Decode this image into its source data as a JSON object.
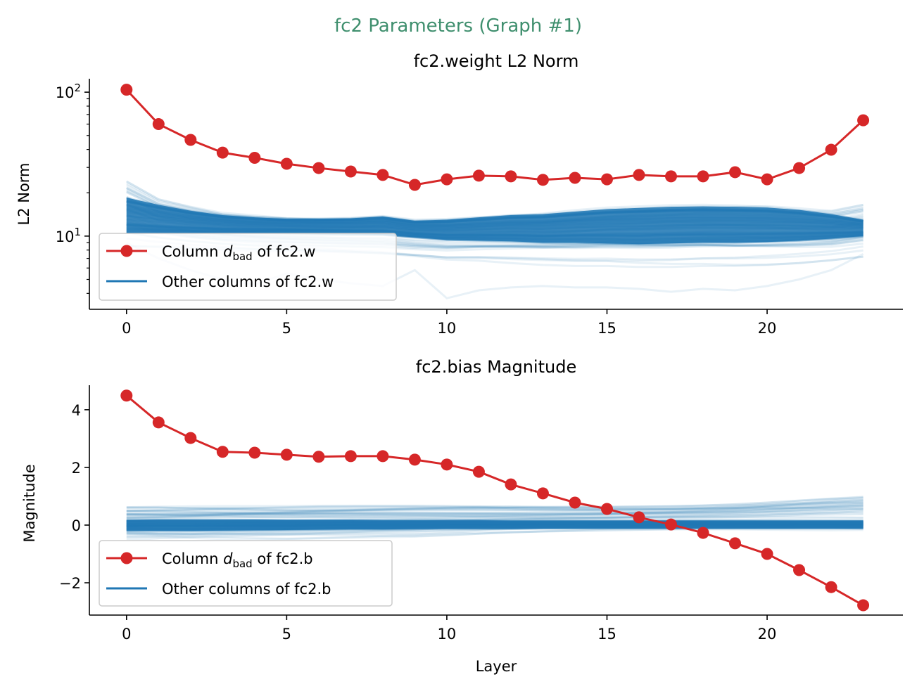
{
  "suptitle": "fc2 Parameters (Graph #1)",
  "colors": {
    "suptitle": "#3f8f6e",
    "bad": "#d62728",
    "other": "#1f77b4"
  },
  "chart_data": [
    {
      "type": "line",
      "title": "fc2.weight L2 Norm",
      "xlabel": "",
      "ylabel": "L2 Norm",
      "yscale": "log",
      "xlim": [
        -1.16,
        24.24
      ],
      "ylim": [
        3.1,
        124
      ],
      "xticks": [
        0,
        5,
        10,
        15,
        20
      ],
      "yticks": [
        {
          "value": 10,
          "base": "10",
          "exp": "1"
        },
        {
          "value": 100,
          "base": "10",
          "exp": "2"
        }
      ],
      "grid": false,
      "legend_position": "lower-left",
      "legend": [
        {
          "prefix": "Column ",
          "symbol": "d",
          "subscript": "bad",
          "suffix": " of fc2.w",
          "series": "bad"
        },
        {
          "prefix": "Other columns of fc2.w",
          "symbol": "",
          "subscript": "",
          "suffix": "",
          "series": "other"
        }
      ],
      "x": [
        0,
        1,
        2,
        3,
        4,
        5,
        6,
        7,
        8,
        9,
        10,
        11,
        12,
        13,
        14,
        15,
        16,
        17,
        18,
        19,
        20,
        21,
        22,
        23
      ],
      "bad_column": [
        104,
        60,
        46.6,
        38,
        35,
        31.8,
        29.7,
        28.1,
        26.6,
        22.7,
        24.8,
        26.3,
        26,
        24.6,
        25.4,
        24.8,
        26.6,
        26,
        26,
        27.8,
        24.8,
        29.7,
        39.8,
        63.8
      ],
      "other_columns": {
        "dense_upper": [
          18.5,
          16.5,
          15,
          14,
          13.5,
          13.2,
          13.2,
          13.3,
          13.7,
          12.8,
          13,
          13.5,
          14,
          14.2,
          14.8,
          15.4,
          15.7,
          16,
          16.1,
          16,
          15.8,
          15.2,
          14.2,
          13
        ],
        "dense_lower": [
          10.5,
          10.5,
          10.5,
          10.5,
          10.5,
          10.5,
          10.4,
          10.3,
          10.2,
          9.8,
          9.4,
          9.3,
          9.2,
          9,
          9,
          8.9,
          8.8,
          8.9,
          9,
          9,
          9.1,
          9.3,
          9.6,
          10
        ],
        "faint_upper": [
          24,
          18,
          16,
          14.5,
          14,
          13.6,
          13.5,
          13.6,
          14,
          13.2,
          13.4,
          13.8,
          14.3,
          14.6,
          15.2,
          15.8,
          16.1,
          16.4,
          16.5,
          16.4,
          16.2,
          15.6,
          15,
          16.5
        ],
        "faint_lower": [
          8.5,
          8.3,
          8,
          7.8,
          7.6,
          7.5,
          7.4,
          7.2,
          7,
          6.8,
          6.5,
          6.5,
          6.4,
          6.3,
          6.2,
          6.2,
          6.1,
          6.1,
          6.2,
          6.2,
          6.3,
          6.5,
          6.8,
          7.2
        ],
        "outlier": [
          9,
          7,
          5.8,
          5,
          4.6,
          5.5,
          5,
          4.7,
          4.5,
          5.8,
          3.7,
          4.2,
          4.4,
          4.5,
          4.4,
          4.4,
          4.3,
          4.1,
          4.3,
          4.2,
          4.5,
          5,
          5.8,
          7.5
        ]
      }
    },
    {
      "type": "line",
      "title": "fc2.bias Magnitude",
      "xlabel": "Layer",
      "ylabel": "Magnitude",
      "yscale": "linear",
      "xlim": [
        -1.16,
        24.24
      ],
      "ylim": [
        -3.12,
        4.85
      ],
      "xticks": [
        0,
        5,
        10,
        15,
        20
      ],
      "yticks": [
        {
          "value": -2,
          "label": "−2"
        },
        {
          "value": 0,
          "label": "0"
        },
        {
          "value": 2,
          "label": "2"
        },
        {
          "value": 4,
          "label": "4"
        }
      ],
      "grid": false,
      "legend_position": "lower-left",
      "legend": [
        {
          "prefix": "Column ",
          "symbol": "d",
          "subscript": "bad",
          "suffix": " of fc2.b",
          "series": "bad"
        },
        {
          "prefix": "Other columns of fc2.b",
          "symbol": "",
          "subscript": "",
          "suffix": "",
          "series": "other"
        }
      ],
      "x": [
        0,
        1,
        2,
        3,
        4,
        5,
        6,
        7,
        8,
        9,
        10,
        11,
        12,
        13,
        14,
        15,
        16,
        17,
        18,
        19,
        20,
        21,
        22,
        23
      ],
      "bad_column": [
        4.49,
        3.56,
        3.02,
        2.54,
        2.51,
        2.44,
        2.37,
        2.39,
        2.39,
        2.27,
        2.1,
        1.85,
        1.41,
        1.1,
        0.78,
        0.56,
        0.27,
        0.02,
        -0.27,
        -0.63,
        -1.0,
        -1.56,
        -2.15,
        -2.78
      ],
      "other_columns": {
        "dense_upper": [
          0.17,
          0.18,
          0.18,
          0.18,
          0.18,
          0.17,
          0.17,
          0.17,
          0.16,
          0.16,
          0.16,
          0.16,
          0.15,
          0.15,
          0.15,
          0.15,
          0.15,
          0.15,
          0.15,
          0.15,
          0.15,
          0.15,
          0.15,
          0.15
        ],
        "dense_lower": [
          -0.2,
          -0.2,
          -0.2,
          -0.19,
          -0.18,
          -0.17,
          -0.16,
          -0.15,
          -0.15,
          -0.14,
          -0.13,
          -0.13,
          -0.13,
          -0.12,
          -0.12,
          -0.12,
          -0.12,
          -0.12,
          -0.12,
          -0.12,
          -0.12,
          -0.12,
          -0.12,
          -0.12
        ],
        "faint_upper": [
          0.62,
          0.64,
          0.65,
          0.66,
          0.66,
          0.66,
          0.67,
          0.67,
          0.67,
          0.67,
          0.66,
          0.65,
          0.64,
          0.63,
          0.63,
          0.63,
          0.64,
          0.65,
          0.68,
          0.72,
          0.78,
          0.85,
          0.92,
          0.98
        ],
        "faint_lower": [
          -0.5,
          -0.55,
          -0.55,
          -0.52,
          -0.5,
          -0.48,
          -0.46,
          -0.44,
          -0.42,
          -0.4,
          -0.35,
          -0.3,
          -0.25,
          -0.22,
          -0.2,
          -0.18,
          -0.16,
          -0.15,
          -0.15,
          -0.15,
          -0.16,
          -0.17,
          -0.18,
          -0.2
        ],
        "outlier": [
          0.6,
          0.6,
          0.6,
          0.6,
          0.6,
          0.6,
          0.6,
          0.6,
          0.6,
          0.6,
          0.6,
          0.6,
          0.6,
          0.6,
          0.6,
          0.6,
          0.6,
          0.6,
          0.6,
          0.6,
          0.6,
          0.6,
          0.58,
          0.56
        ]
      }
    }
  ]
}
